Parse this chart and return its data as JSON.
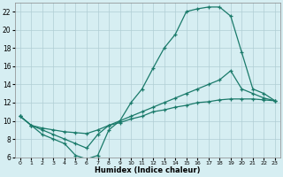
{
  "xlabel": "Humidex (Indice chaleur)",
  "bg_color": "#d6eef2",
  "grid_color": "#b0cdd4",
  "line_color": "#1a7a6a",
  "line1_x": [
    0,
    1,
    2,
    3,
    4,
    5,
    6,
    7,
    8,
    9,
    10,
    11,
    12,
    13,
    14,
    15,
    16,
    17,
    18,
    19,
    20,
    21,
    22,
    23
  ],
  "line1_y": [
    10.5,
    9.5,
    8.5,
    8.0,
    7.5,
    6.2,
    5.8,
    6.2,
    9.0,
    10.0,
    12.0,
    13.5,
    15.8,
    18.0,
    19.5,
    22.0,
    22.3,
    22.5,
    22.5,
    21.5,
    17.5,
    13.5,
    13.0,
    12.2
  ],
  "line2_x": [
    0,
    1,
    2,
    3,
    4,
    5,
    6,
    7,
    8,
    9,
    10,
    11,
    12,
    13,
    14,
    15,
    16,
    17,
    18,
    19,
    20,
    21,
    22,
    23
  ],
  "line2_y": [
    10.5,
    9.5,
    9.0,
    8.5,
    8.0,
    7.5,
    7.0,
    8.5,
    9.5,
    10.0,
    10.5,
    11.0,
    11.5,
    12.0,
    12.5,
    13.0,
    13.5,
    14.0,
    14.5,
    15.5,
    13.5,
    13.0,
    12.5,
    12.2
  ],
  "line3_x": [
    0,
    1,
    2,
    3,
    4,
    5,
    6,
    7,
    8,
    9,
    10,
    11,
    12,
    13,
    14,
    15,
    16,
    17,
    18,
    19,
    20,
    21,
    22,
    23
  ],
  "line3_y": [
    10.5,
    9.5,
    9.2,
    9.0,
    8.8,
    8.7,
    8.6,
    9.0,
    9.5,
    9.8,
    10.2,
    10.5,
    11.0,
    11.2,
    11.5,
    11.7,
    12.0,
    12.1,
    12.3,
    12.4,
    12.4,
    12.4,
    12.3,
    12.2
  ],
  "xlim": [
    -0.5,
    23.5
  ],
  "ylim": [
    6,
    23
  ],
  "yticks": [
    6,
    8,
    10,
    12,
    14,
    16,
    18,
    20,
    22
  ],
  "xticks": [
    0,
    1,
    2,
    3,
    4,
    5,
    6,
    7,
    8,
    9,
    10,
    11,
    12,
    13,
    14,
    15,
    16,
    17,
    18,
    19,
    20,
    21,
    22,
    23
  ]
}
